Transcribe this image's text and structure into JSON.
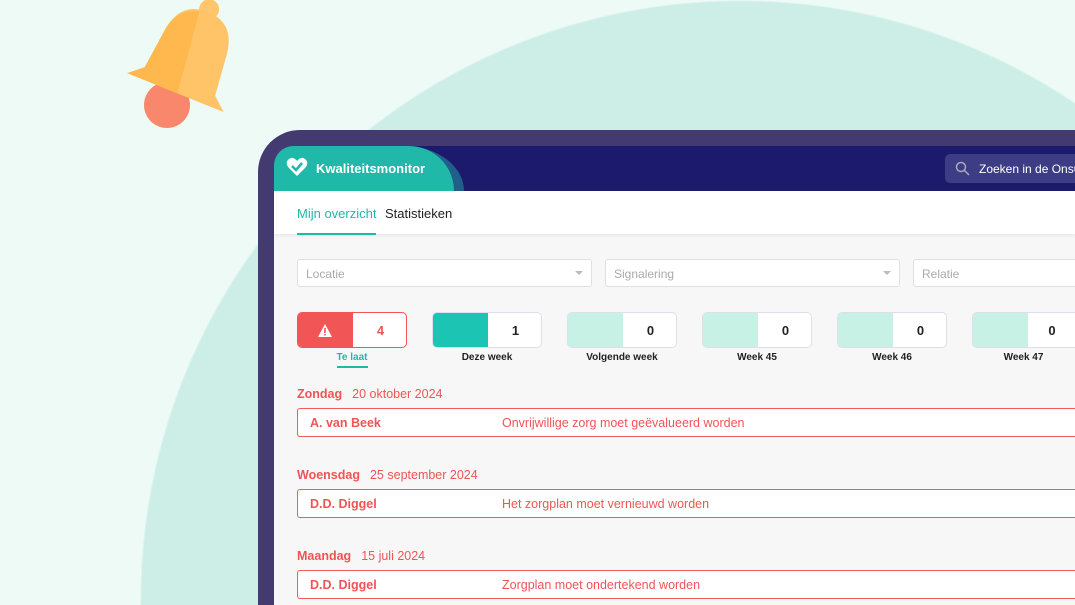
{
  "app": {
    "title": "Kwaliteitsmonitor",
    "search_placeholder": "Zoeken in de Ons®"
  },
  "tabs": [
    {
      "label": "Mijn overzicht",
      "active": true
    },
    {
      "label": "Statistieken",
      "active": false
    }
  ],
  "filters": [
    {
      "placeholder": "Locatie"
    },
    {
      "placeholder": "Signalering"
    },
    {
      "placeholder": "Relatie"
    }
  ],
  "cards": [
    {
      "label": "Te laat",
      "count": "4",
      "color": "#f25555",
      "active": true
    },
    {
      "label": "Deze week",
      "count": "1",
      "color": "#1cc4b4"
    },
    {
      "label": "Volgende week",
      "count": "0",
      "color": "#c6f1e4"
    },
    {
      "label": "Week 45",
      "count": "0",
      "color": "#c6f1e4"
    },
    {
      "label": "Week 46",
      "count": "0",
      "color": "#c6f1e4"
    },
    {
      "label": "Week 47",
      "count": "0",
      "color": "#c6f1e4"
    }
  ],
  "groups": [
    {
      "day": "Zondag",
      "date": "20 oktober 2024",
      "name": "A. van Beek",
      "message": "Onvrijwillige zorg moet geëvalueerd worden"
    },
    {
      "day": "Woensdag",
      "date": "25 september 2024",
      "name": "D.D. Diggel",
      "message": "Het zorgplan moet vernieuwd worden"
    },
    {
      "day": "Maandag",
      "date": "15 juli 2024",
      "name": "D.D. Diggel",
      "message": "Zorgplan moet ondertekend worden"
    }
  ]
}
